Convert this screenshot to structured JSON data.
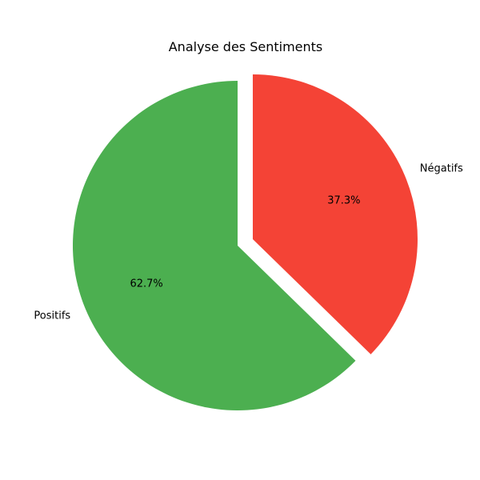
{
  "chart_data": {
    "type": "pie",
    "title": "Analyse des Sentiments",
    "categories": [
      "Négatifs",
      "Positifs"
    ],
    "values": [
      37.3,
      62.7
    ],
    "percent_labels": [
      "37.3%",
      "62.7%"
    ],
    "colors": [
      "#f44336",
      "#4caf50"
    ],
    "exploded": [
      true,
      false
    ],
    "start_angle_deg": 90,
    "direction": "clockwise",
    "legend": "none"
  }
}
